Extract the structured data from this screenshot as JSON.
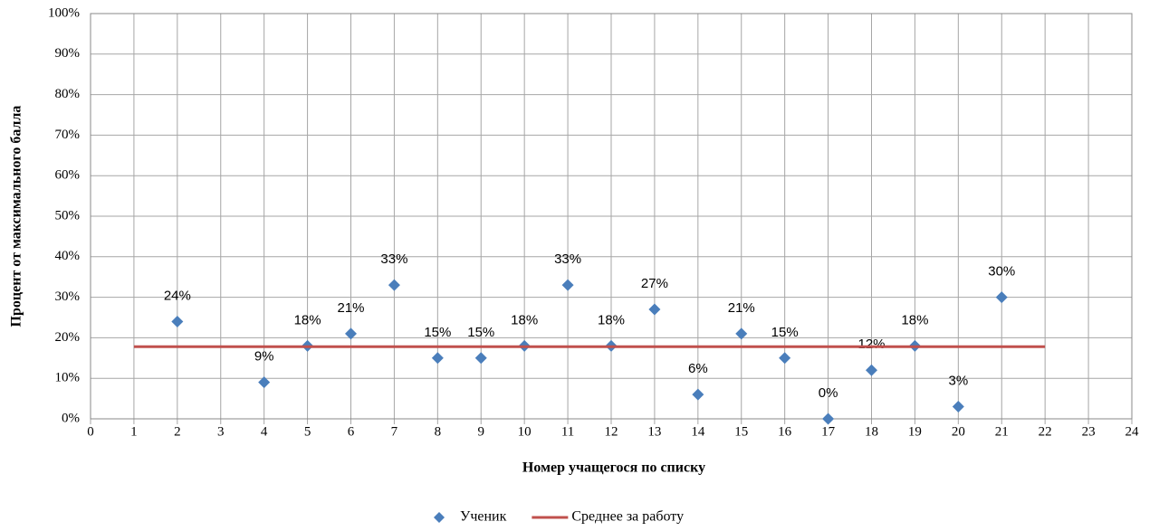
{
  "chart_data": {
    "type": "scatter",
    "xlabel": "Номер учащегося по списку",
    "ylabel": "Процент от максимального балла",
    "xlim": [
      0,
      24
    ],
    "xticks": [
      0,
      1,
      2,
      3,
      4,
      5,
      6,
      7,
      8,
      9,
      10,
      11,
      12,
      13,
      14,
      15,
      16,
      17,
      18,
      19,
      20,
      21,
      22,
      23,
      24
    ],
    "ylim": [
      0,
      100
    ],
    "yticks": [
      {
        "value": 0,
        "label": "0%"
      },
      {
        "value": 10,
        "label": "10%"
      },
      {
        "value": 20,
        "label": "20%"
      },
      {
        "value": 30,
        "label": "30%"
      },
      {
        "value": 40,
        "label": "40%"
      },
      {
        "value": 50,
        "label": "50%"
      },
      {
        "value": 60,
        "label": "60%"
      },
      {
        "value": 70,
        "label": "70%"
      },
      {
        "value": 80,
        "label": "80%"
      },
      {
        "value": 90,
        "label": "90%"
      },
      {
        "value": 100,
        "label": "100%"
      }
    ],
    "grid": true,
    "legend": "bottom",
    "series": [
      {
        "name": "Ученик",
        "type": "scatter",
        "color": "#4a7ebb",
        "x": [
          2,
          4,
          5,
          6,
          7,
          8,
          9,
          10,
          11,
          12,
          13,
          14,
          15,
          16,
          17,
          18,
          19,
          20,
          21
        ],
        "values": [
          24,
          9,
          18,
          21,
          33,
          15,
          15,
          18,
          33,
          18,
          27,
          6,
          21,
          15,
          0,
          12,
          18,
          3,
          30
        ],
        "value_labels": [
          "24%",
          "9%",
          "18%",
          "21%",
          "33%",
          "15%",
          "15%",
          "18%",
          "33%",
          "18%",
          "27%",
          "6%",
          "21%",
          "15%",
          "0%",
          "12%",
          "18%",
          "3%",
          "30%"
        ]
      },
      {
        "name": "Среднее за работу",
        "type": "line",
        "color": "#c0504d",
        "x": [
          1,
          22
        ],
        "values": [
          17.8,
          17.8
        ]
      }
    ]
  }
}
